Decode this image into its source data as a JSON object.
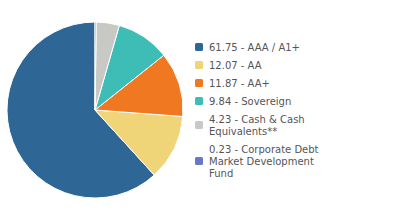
{
  "chart_data": {
    "type": "pie",
    "categories": [
      "61.75 - AAA / A1+",
      "12.07 - AA",
      "11.87 - AA+",
      "9.84 - Sovereign",
      "4.23 - Cash & Cash\nEquivalents**",
      "0.23 - Corporate Debt\nMarket Development\nFund"
    ],
    "values": [
      61.75,
      12.07,
      11.87,
      9.84,
      4.23,
      0.23
    ],
    "colors": [
      "#2e6796",
      "#f0d478",
      "#f07820",
      "#3dbdb5",
      "#c8c8c4",
      "#6678c8"
    ],
    "legend": "right"
  }
}
